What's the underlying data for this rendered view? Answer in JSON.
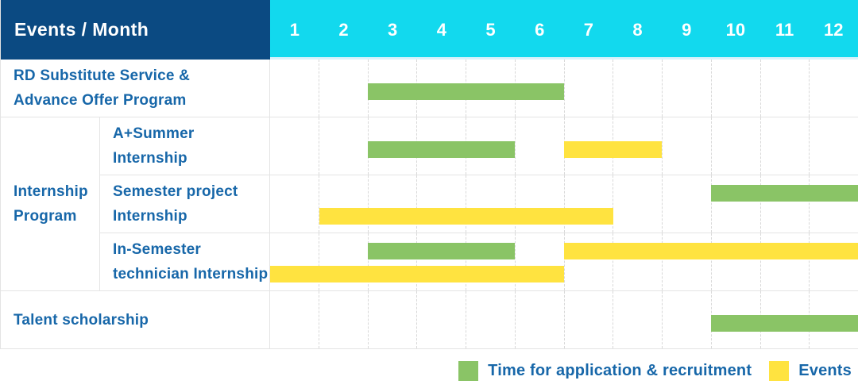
{
  "header": {
    "corner_label": "Events / Month",
    "months": [
      "1",
      "2",
      "3",
      "4",
      "5",
      "6",
      "7",
      "8",
      "9",
      "10",
      "11",
      "12"
    ]
  },
  "legend": {
    "application_label": "Time for application & recruitment",
    "events_label": "Events"
  },
  "colors": {
    "header_navy": "#0b4a82",
    "header_cyan": "#12d9ee",
    "application_green": "#8ac466",
    "events_yellow": "#ffe340",
    "label_blue": "#1767a9"
  },
  "chart_data": {
    "type": "gantt",
    "title": "Events / Month",
    "x_axis": {
      "label": "Month",
      "ticks": [
        "1",
        "2",
        "3",
        "4",
        "5",
        "6",
        "7",
        "8",
        "9",
        "10",
        "11",
        "12"
      ],
      "range": [
        1,
        12
      ]
    },
    "legend_position": "bottom-right",
    "legend": [
      {
        "series": "application",
        "label": "Time for application & recruitment",
        "color": "#8ac466"
      },
      {
        "series": "events",
        "label": "Events",
        "color": "#ffe340"
      }
    ],
    "sections": [
      {
        "type": "row",
        "label": "RD Substitute Service & Advance Offer Program",
        "label_lines": [
          "RD Substitute Service &",
          "Advance Offer Program"
        ],
        "bars": [
          {
            "series": "application",
            "start_month": 3,
            "end_month": 6,
            "lane": "mid"
          }
        ]
      },
      {
        "type": "group",
        "label": "Internship Program",
        "label_lines": [
          "Internship",
          "Program"
        ],
        "rows": [
          {
            "label": "A+Summer Internship",
            "label_lines": [
              "A+Summer",
              "Internship"
            ],
            "bars": [
              {
                "series": "application",
                "start_month": 3,
                "end_month": 5,
                "lane": "mid"
              },
              {
                "series": "events",
                "start_month": 7,
                "end_month": 8,
                "lane": "mid"
              }
            ]
          },
          {
            "label": "Semester project Internship",
            "label_lines": [
              "Semester project",
              "Internship"
            ],
            "bars": [
              {
                "series": "application",
                "start_month": 10,
                "end_month": 12,
                "lane": "top"
              },
              {
                "series": "events",
                "start_month": 2,
                "end_month": 7,
                "lane": "bottom"
              }
            ]
          },
          {
            "label": "In-Semester technician Internship",
            "label_lines": [
              "In-Semester",
              "technician Internship"
            ],
            "bars": [
              {
                "series": "application",
                "start_month": 3,
                "end_month": 5,
                "lane": "top"
              },
              {
                "series": "events",
                "start_month": 7,
                "end_month": 12,
                "lane": "top"
              },
              {
                "series": "events",
                "start_month": 1,
                "end_month": 6,
                "lane": "bottom"
              }
            ]
          }
        ]
      },
      {
        "type": "row",
        "label": "Talent scholarship",
        "label_lines": [
          "Talent scholarship"
        ],
        "bars": [
          {
            "series": "application",
            "start_month": 10,
            "end_month": 12,
            "lane": "mid"
          }
        ]
      }
    ]
  }
}
